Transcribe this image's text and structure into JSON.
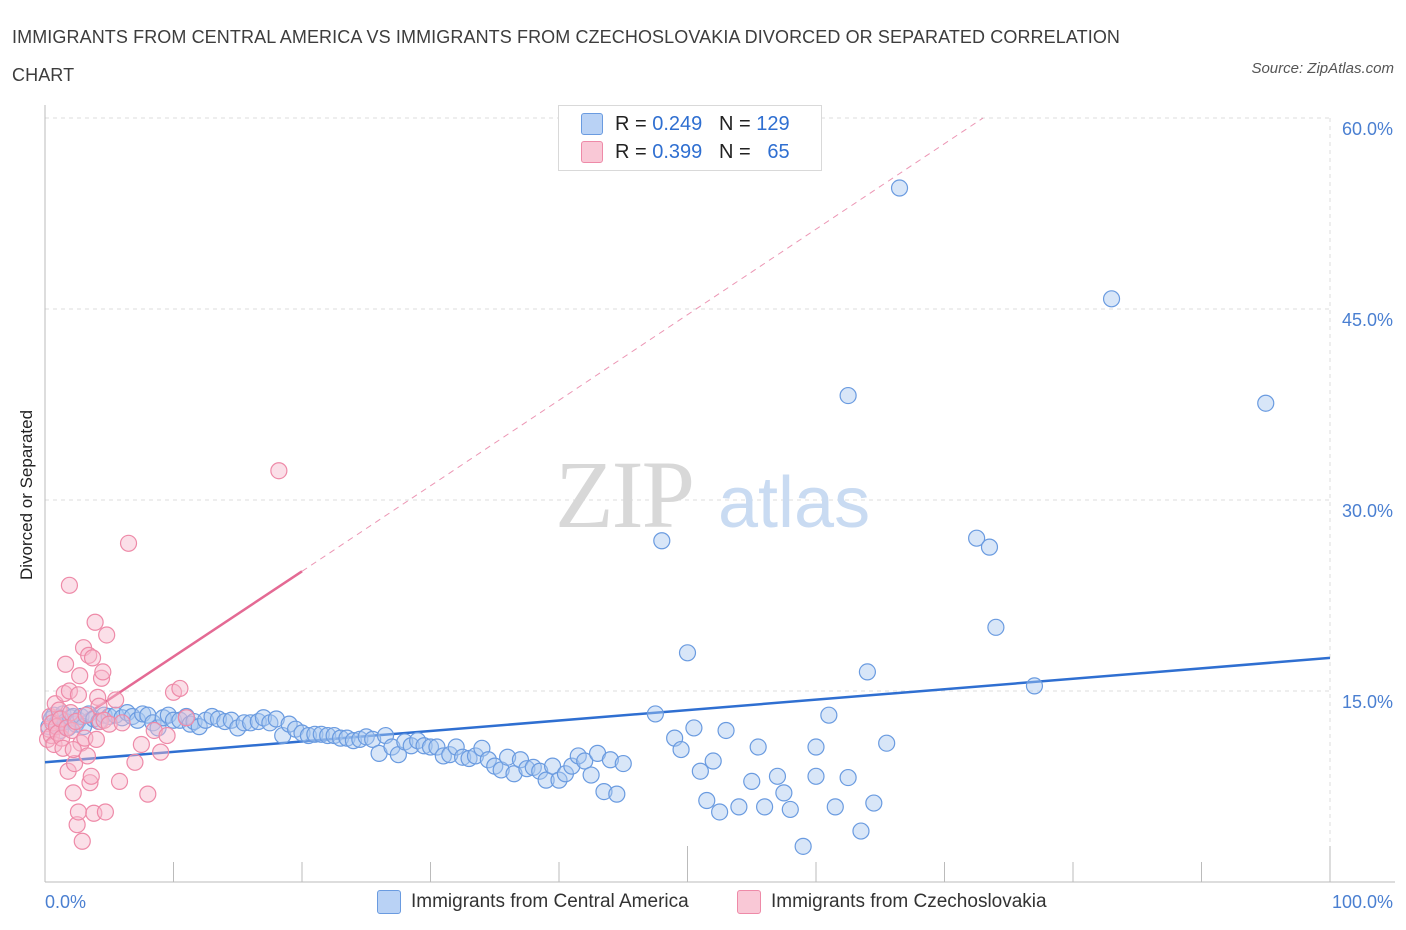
{
  "header": {
    "title": "IMMIGRANTS FROM CENTRAL AMERICA VS IMMIGRANTS FROM CZECHOSLOVAKIA DIVORCED OR SEPARATED CORRELATION CHART",
    "source": "Source: ZipAtlas.com"
  },
  "watermark": {
    "zip": "ZIP",
    "atlas": "atlas"
  },
  "legend": {
    "rows": [
      {
        "r_label": "R =",
        "r_value": "0.249",
        "n_label": "N =",
        "n_value": "129"
      },
      {
        "r_label": "R =",
        "r_value": "0.399",
        "n_label": "N =",
        "n_value": "65"
      }
    ]
  },
  "bottom_legend": {
    "items": [
      "Immigrants from Central America",
      "Immigrants from Czechoslovakia"
    ]
  },
  "colors": {
    "blue_fill": "#a8c8f0",
    "blue_stroke": "#6a9be0",
    "blue_line": "#2f6fd1",
    "pink_fill": "#f7b9cb",
    "pink_stroke": "#ee8aa8",
    "pink_line": "#e46a94",
    "grid": "#dddddd",
    "tick_text": "#4a7fd1"
  },
  "chart_data": {
    "type": "scatter",
    "title": "IMMIGRANTS FROM CENTRAL AMERICA VS IMMIGRANTS FROM CZECHOSLOVAKIA DIVORCED OR SEPARATED CORRELATION CHART",
    "xlabel": "",
    "ylabel": "Divorced or Separated",
    "xlim": [
      0,
      100
    ],
    "ylim": [
      0,
      60
    ],
    "x_tick_labels": [
      "0.0%",
      "100.0%"
    ],
    "y_ticks": [
      15,
      30,
      45,
      60
    ],
    "y_tick_labels": [
      "15.0%",
      "30.0%",
      "45.0%",
      "60.0%"
    ],
    "grid": true,
    "legend_position": "top-center",
    "series": [
      {
        "name": "Immigrants from Central America",
        "R": 0.249,
        "N": 129,
        "trend": {
          "x": [
            0,
            100
          ],
          "y": [
            9.4,
            17.6
          ],
          "style": "solid"
        },
        "points": [
          [
            0.3,
            12.2
          ],
          [
            0.5,
            12.8
          ],
          [
            0.7,
            13.1
          ],
          [
            0.9,
            12.4
          ],
          [
            1.1,
            12.9
          ],
          [
            1.2,
            11.9
          ],
          [
            1.4,
            13.2
          ],
          [
            1.6,
            12.6
          ],
          [
            1.8,
            12.1
          ],
          [
            2.0,
            12.9
          ],
          [
            2.2,
            13.0
          ],
          [
            2.4,
            12.4
          ],
          [
            2.6,
            12.7
          ],
          [
            2.8,
            13.0
          ],
          [
            3.0,
            12.2
          ],
          [
            3.4,
            13.2
          ],
          [
            3.8,
            12.8
          ],
          [
            4.2,
            12.6
          ],
          [
            4.6,
            13.1
          ],
          [
            5.0,
            13.0
          ],
          [
            5.5,
            13.1
          ],
          [
            6.0,
            12.9
          ],
          [
            6.4,
            13.3
          ],
          [
            6.8,
            13.0
          ],
          [
            7.2,
            12.7
          ],
          [
            7.6,
            13.2
          ],
          [
            8.0,
            13.1
          ],
          [
            8.4,
            12.5
          ],
          [
            8.8,
            12.1
          ],
          [
            9.2,
            12.9
          ],
          [
            9.6,
            13.1
          ],
          [
            10.0,
            12.7
          ],
          [
            10.5,
            12.7
          ],
          [
            11.0,
            13.0
          ],
          [
            11.3,
            12.4
          ],
          [
            11.6,
            12.6
          ],
          [
            12.0,
            12.2
          ],
          [
            12.5,
            12.7
          ],
          [
            13.0,
            13.0
          ],
          [
            13.5,
            12.8
          ],
          [
            14.0,
            12.6
          ],
          [
            14.5,
            12.7
          ],
          [
            15.0,
            12.1
          ],
          [
            15.5,
            12.5
          ],
          [
            16.0,
            12.5
          ],
          [
            16.6,
            12.6
          ],
          [
            17.0,
            12.9
          ],
          [
            17.5,
            12.5
          ],
          [
            18.0,
            12.8
          ],
          [
            18.5,
            11.5
          ],
          [
            19.0,
            12.4
          ],
          [
            19.5,
            12.0
          ],
          [
            20.0,
            11.7
          ],
          [
            20.5,
            11.5
          ],
          [
            21.0,
            11.6
          ],
          [
            21.5,
            11.6
          ],
          [
            22.0,
            11.5
          ],
          [
            22.5,
            11.5
          ],
          [
            23.0,
            11.3
          ],
          [
            23.5,
            11.3
          ],
          [
            24.0,
            11.1
          ],
          [
            24.5,
            11.2
          ],
          [
            25.0,
            11.4
          ],
          [
            25.5,
            11.2
          ],
          [
            26.0,
            10.1
          ],
          [
            26.5,
            11.5
          ],
          [
            27.0,
            10.6
          ],
          [
            27.5,
            10.0
          ],
          [
            28.0,
            11.0
          ],
          [
            28.5,
            10.7
          ],
          [
            29.0,
            11.1
          ],
          [
            29.5,
            10.7
          ],
          [
            30.0,
            10.6
          ],
          [
            30.5,
            10.6
          ],
          [
            31.0,
            9.9
          ],
          [
            31.5,
            10.0
          ],
          [
            32.0,
            10.6
          ],
          [
            32.5,
            9.8
          ],
          [
            33.0,
            9.7
          ],
          [
            33.5,
            9.9
          ],
          [
            34.0,
            10.5
          ],
          [
            34.5,
            9.6
          ],
          [
            35.0,
            9.1
          ],
          [
            35.5,
            8.8
          ],
          [
            36.0,
            9.8
          ],
          [
            36.5,
            8.5
          ],
          [
            37.0,
            9.6
          ],
          [
            37.5,
            8.9
          ],
          [
            38.0,
            9.0
          ],
          [
            38.5,
            8.7
          ],
          [
            39.0,
            8.0
          ],
          [
            39.5,
            9.1
          ],
          [
            40.0,
            8.0
          ],
          [
            40.5,
            8.5
          ],
          [
            41.0,
            9.1
          ],
          [
            41.5,
            9.9
          ],
          [
            42.0,
            9.5
          ],
          [
            42.5,
            8.4
          ],
          [
            43.0,
            10.1
          ],
          [
            43.5,
            7.1
          ],
          [
            44.0,
            9.6
          ],
          [
            44.5,
            6.9
          ],
          [
            45.0,
            9.3
          ],
          [
            47.5,
            13.2
          ],
          [
            48.0,
            26.8
          ],
          [
            49.0,
            11.3
          ],
          [
            49.5,
            10.4
          ],
          [
            50.0,
            18.0
          ],
          [
            50.5,
            12.1
          ],
          [
            51.0,
            8.7
          ],
          [
            51.5,
            6.4
          ],
          [
            52.0,
            9.5
          ],
          [
            52.5,
            5.5
          ],
          [
            53.0,
            11.9
          ],
          [
            54.0,
            5.9
          ],
          [
            55.0,
            7.9
          ],
          [
            55.5,
            10.6
          ],
          [
            56.0,
            5.9
          ],
          [
            57.0,
            8.3
          ],
          [
            57.5,
            7.0
          ],
          [
            58.0,
            5.7
          ],
          [
            59.0,
            2.8
          ],
          [
            60.0,
            8.3
          ],
          [
            60.0,
            10.6
          ],
          [
            61.0,
            13.1
          ],
          [
            61.5,
            5.9
          ],
          [
            62.5,
            8.2
          ],
          [
            62.5,
            38.2
          ],
          [
            63.5,
            4.0
          ],
          [
            64.0,
            16.5
          ],
          [
            64.5,
            6.2
          ],
          [
            65.5,
            10.9
          ],
          [
            66.5,
            54.5
          ],
          [
            72.5,
            27.0
          ],
          [
            73.5,
            26.3
          ],
          [
            74.0,
            20.0
          ],
          [
            77.0,
            15.4
          ],
          [
            83.0,
            45.8
          ],
          [
            95.0,
            37.6
          ]
        ]
      },
      {
        "name": "Immigrants from Czechoslovakia",
        "R": 0.399,
        "N": 65,
        "trend": {
          "x": [
            0,
            20
          ],
          "y": [
            11.0,
            24.4
          ],
          "style": "solid",
          "extended_to": [
            73.0,
            60.0
          ],
          "extended_style": "dashed"
        },
        "points": [
          [
            0.2,
            11.2
          ],
          [
            0.3,
            12.0
          ],
          [
            0.4,
            13.0
          ],
          [
            0.5,
            11.5
          ],
          [
            0.6,
            12.5
          ],
          [
            0.7,
            10.8
          ],
          [
            0.8,
            14.0
          ],
          [
            0.9,
            12.2
          ],
          [
            1.0,
            11.7
          ],
          [
            1.1,
            13.5
          ],
          [
            1.2,
            12.8
          ],
          [
            1.3,
            11.3
          ],
          [
            1.4,
            10.5
          ],
          [
            1.5,
            14.8
          ],
          [
            1.6,
            17.1
          ],
          [
            1.7,
            12.1
          ],
          [
            1.8,
            8.7
          ],
          [
            1.9,
            15.0
          ],
          [
            2.0,
            13.3
          ],
          [
            2.1,
            11.9
          ],
          [
            2.2,
            7.0
          ],
          [
            2.3,
            9.3
          ],
          [
            2.4,
            12.6
          ],
          [
            2.5,
            4.5
          ],
          [
            2.6,
            5.5
          ],
          [
            2.7,
            16.2
          ],
          [
            2.8,
            10.9
          ],
          [
            2.9,
            3.2
          ],
          [
            3.0,
            18.4
          ],
          [
            3.1,
            11.3
          ],
          [
            3.2,
            13.1
          ],
          [
            3.3,
            9.9
          ],
          [
            3.4,
            17.8
          ],
          [
            3.5,
            7.8
          ],
          [
            3.6,
            8.3
          ],
          [
            3.7,
            17.6
          ],
          [
            3.8,
            5.4
          ],
          [
            3.9,
            20.4
          ],
          [
            4.0,
            11.2
          ],
          [
            4.1,
            14.5
          ],
          [
            4.2,
            13.8
          ],
          [
            4.3,
            12.6
          ],
          [
            4.4,
            16.0
          ],
          [
            4.5,
            16.5
          ],
          [
            4.6,
            12.7
          ],
          [
            4.7,
            5.5
          ],
          [
            4.8,
            19.4
          ],
          [
            5.0,
            12.4
          ],
          [
            5.5,
            14.3
          ],
          [
            5.8,
            7.9
          ],
          [
            6.0,
            12.5
          ],
          [
            6.5,
            26.6
          ],
          [
            7.0,
            9.4
          ],
          [
            7.5,
            10.8
          ],
          [
            8.0,
            6.9
          ],
          [
            8.5,
            11.9
          ],
          [
            9.0,
            10.2
          ],
          [
            9.5,
            11.5
          ],
          [
            10.0,
            14.9
          ],
          [
            10.5,
            15.2
          ],
          [
            11.0,
            12.9
          ],
          [
            1.9,
            23.3
          ],
          [
            2.2,
            10.4
          ],
          [
            2.6,
            14.7
          ],
          [
            18.2,
            32.3
          ]
        ]
      }
    ]
  }
}
